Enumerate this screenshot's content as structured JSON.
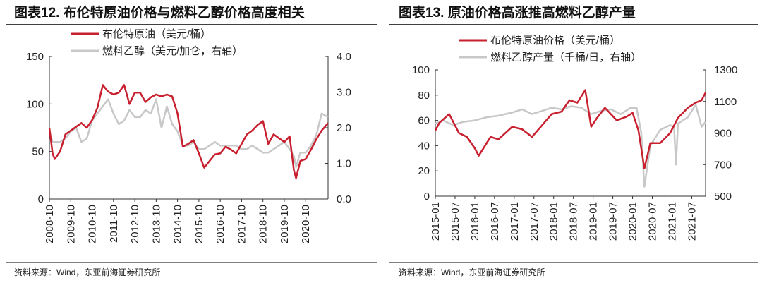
{
  "source": "资料来源：Wind，东亚前海证券研究所",
  "chart_data": [
    {
      "type": "line",
      "title": "图表12. 布伦特原油价格与燃料乙醇价格高度相关",
      "ylim": [
        0,
        150
      ],
      "yticks": [
        0,
        50,
        100,
        150
      ],
      "y2lim": [
        0,
        4
      ],
      "y2ticks": [
        "0.0",
        "1.0",
        "2.0",
        "3.0",
        "4.0"
      ],
      "xlim": [
        2008.75,
        2021.8
      ],
      "xticks": [
        "2008-10",
        "2009-10",
        "2010-10",
        "2011-10",
        "2012-10",
        "2013-10",
        "2014-10",
        "2015-10",
        "2016-10",
        "2017-10",
        "2018-10",
        "2019-10",
        "2020-10"
      ],
      "series": [
        {
          "name": "布伦特原油（美元/桶）",
          "axis": "left",
          "color": "#c8202f",
          "x": [
            2008.75,
            2008.9,
            2009.0,
            2009.25,
            2009.5,
            2009.75,
            2010.0,
            2010.25,
            2010.5,
            2010.75,
            2011.0,
            2011.25,
            2011.5,
            2011.75,
            2012.0,
            2012.25,
            2012.5,
            2012.75,
            2013.0,
            2013.25,
            2013.5,
            2013.75,
            2014.0,
            2014.25,
            2014.5,
            2014.75,
            2015.0,
            2015.25,
            2015.5,
            2015.75,
            2016.0,
            2016.25,
            2016.5,
            2016.75,
            2017.0,
            2017.25,
            2017.5,
            2017.75,
            2018.0,
            2018.25,
            2018.5,
            2018.75,
            2019.0,
            2019.25,
            2019.5,
            2019.75,
            2020.0,
            2020.2,
            2020.3,
            2020.5,
            2020.75,
            2021.0,
            2021.25,
            2021.5,
            2021.8
          ],
          "values": [
            75,
            48,
            42,
            50,
            68,
            72,
            76,
            80,
            75,
            83,
            96,
            120,
            113,
            110,
            112,
            120,
            100,
            112,
            112,
            102,
            107,
            110,
            108,
            110,
            108,
            90,
            55,
            58,
            62,
            48,
            33,
            40,
            47,
            48,
            55,
            52,
            48,
            58,
            68,
            72,
            78,
            82,
            58,
            68,
            64,
            60,
            66,
            30,
            22,
            40,
            42,
            52,
            63,
            72,
            80
          ]
        },
        {
          "name": "燃料乙醇（美元/加仑，右轴）",
          "axis": "right",
          "color": "#c8c8c8",
          "x": [
            2008.75,
            2008.9,
            2009.0,
            2009.25,
            2009.5,
            2009.75,
            2010.0,
            2010.25,
            2010.5,
            2010.75,
            2011.0,
            2011.25,
            2011.5,
            2011.75,
            2012.0,
            2012.25,
            2012.5,
            2012.75,
            2013.0,
            2013.25,
            2013.5,
            2013.75,
            2014.0,
            2014.25,
            2014.5,
            2014.75,
            2015.0,
            2015.25,
            2015.5,
            2015.75,
            2016.0,
            2016.25,
            2016.5,
            2016.75,
            2017.0,
            2017.25,
            2017.5,
            2017.75,
            2018.0,
            2018.25,
            2018.5,
            2018.75,
            2019.0,
            2019.25,
            2019.5,
            2019.75,
            2020.0,
            2020.2,
            2020.3,
            2020.5,
            2020.75,
            2021.0,
            2021.25,
            2021.5,
            2021.8
          ],
          "values": [
            1.9,
            1.6,
            1.6,
            1.6,
            1.7,
            1.9,
            2.0,
            1.6,
            1.7,
            2.2,
            2.4,
            2.6,
            2.8,
            2.4,
            2.1,
            2.2,
            2.5,
            2.3,
            2.3,
            2.5,
            2.4,
            2.8,
            2.0,
            2.6,
            2.1,
            1.9,
            1.5,
            1.5,
            1.6,
            1.4,
            1.4,
            1.5,
            1.6,
            1.5,
            1.5,
            1.5,
            1.5,
            1.4,
            1.4,
            1.5,
            1.4,
            1.3,
            1.3,
            1.4,
            1.5,
            1.6,
            1.4,
            1.2,
            0.9,
            1.3,
            1.3,
            1.5,
            1.8,
            2.4,
            2.3
          ]
        }
      ]
    },
    {
      "type": "line",
      "title": "图表13. 原油价格高涨推高燃料乙醇产量",
      "ylim": [
        0,
        100
      ],
      "yticks": [
        0,
        20,
        40,
        60,
        80,
        100
      ],
      "y2lim": [
        500,
        1300
      ],
      "y2ticks": [
        "500",
        "700",
        "900",
        "1100",
        "1300"
      ],
      "xlim": [
        2015.0,
        2021.85
      ],
      "xticks": [
        "2015-01",
        "2015-07",
        "2016-01",
        "2016-07",
        "2017-01",
        "2017-07",
        "2018-01",
        "2018-07",
        "2019-01",
        "2019-07",
        "2020-01",
        "2020-07",
        "2021-01",
        "2021-07"
      ],
      "series": [
        {
          "name": "布伦特原油价格（美元/桶）",
          "axis": "left",
          "color": "#c8202f",
          "x": [
            2015.0,
            2015.1,
            2015.35,
            2015.6,
            2015.8,
            2016.0,
            2016.1,
            2016.4,
            2016.6,
            2016.95,
            2017.2,
            2017.45,
            2017.7,
            2017.95,
            2018.2,
            2018.4,
            2018.6,
            2018.8,
            2018.95,
            2019.1,
            2019.3,
            2019.6,
            2019.85,
            2020.0,
            2020.15,
            2020.3,
            2020.45,
            2020.7,
            2020.95,
            2021.15,
            2021.4,
            2021.6,
            2021.75,
            2021.85
          ],
          "values": [
            52,
            58,
            65,
            50,
            47,
            38,
            32,
            47,
            45,
            55,
            53,
            47,
            56,
            65,
            67,
            76,
            74,
            84,
            55,
            62,
            70,
            60,
            63,
            66,
            52,
            22,
            42,
            42,
            50,
            62,
            70,
            74,
            76,
            82
          ]
        },
        {
          "name": "燃料乙醇产量（千桶/日，右轴）",
          "axis": "right",
          "color": "#c8c8c8",
          "x": [
            2015.0,
            2015.2,
            2015.45,
            2015.7,
            2016.0,
            2016.3,
            2016.6,
            2016.95,
            2017.2,
            2017.45,
            2017.7,
            2017.95,
            2018.2,
            2018.45,
            2018.7,
            2018.95,
            2019.2,
            2019.45,
            2019.7,
            2019.95,
            2020.1,
            2020.22,
            2020.3,
            2020.45,
            2020.7,
            2020.95,
            2021.05,
            2021.1,
            2021.15,
            2021.4,
            2021.6,
            2021.75,
            2021.85
          ],
          "values": [
            960,
            980,
            950,
            970,
            980,
            1000,
            1010,
            1030,
            1050,
            1020,
            1040,
            1060,
            1050,
            1070,
            1060,
            1020,
            1040,
            1050,
            1020,
            1060,
            1060,
            900,
            560,
            820,
            920,
            950,
            940,
            700,
            960,
            1000,
            1080,
            940,
            970
          ]
        }
      ]
    }
  ]
}
